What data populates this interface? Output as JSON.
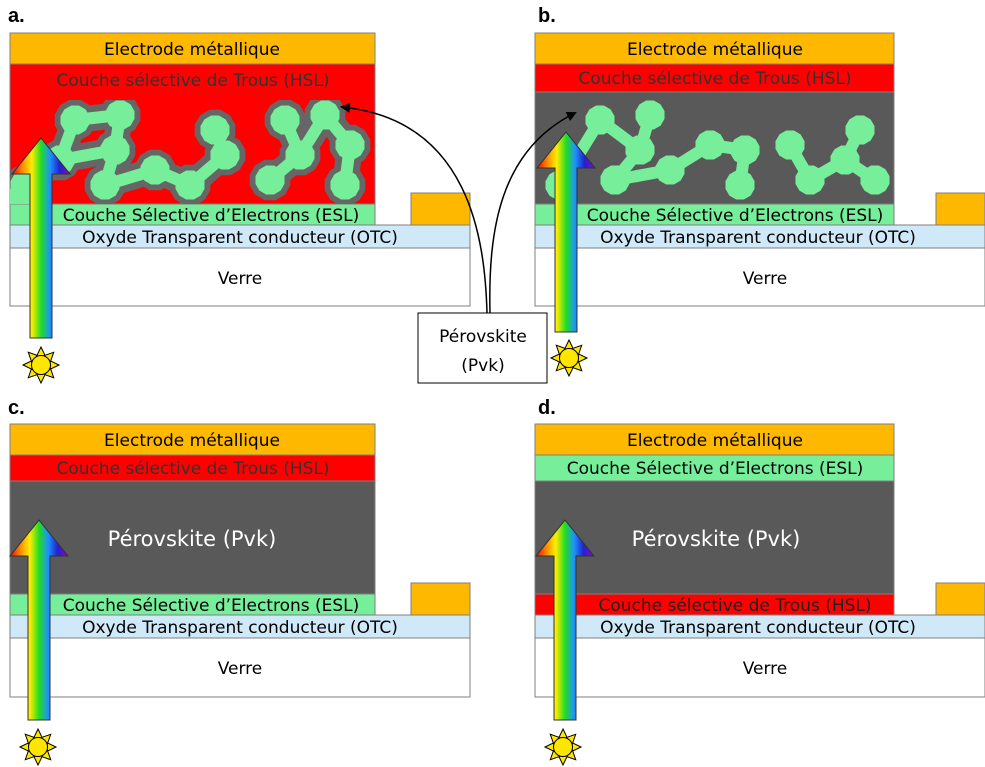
{
  "colors": {
    "electrode": "#FFB800",
    "hsl": "#FF0000",
    "esl": "#76EE9A",
    "otc": "#CFE9F8",
    "verre": "#FFFFFF",
    "pvk": "#595959",
    "particle": "#76EE9A",
    "particle_shell": "#666666",
    "sun": "#FFE600"
  },
  "panels": {
    "a": {
      "letter": "a.",
      "electrode": "Electrode métallique",
      "hsl": "Couche sélective de Trous (HSL)",
      "esl": "Couche Sélective d’Electrons (ESL)",
      "otc": "Oxyde Transparent conducteur (OTC)",
      "verre": "Verre"
    },
    "b": {
      "letter": "b.",
      "electrode": "Electrode métallique",
      "hsl": "Couche sélective de Trous (HSL)",
      "esl": "Couche Sélective d’Electrons (ESL)",
      "otc": "Oxyde Transparent conducteur (OTC)",
      "verre": "Verre"
    },
    "c": {
      "letter": "c.",
      "electrode": "Electrode métallique",
      "hsl": "Couche sélective de Trous (HSL)",
      "pvk": "Pérovskite (Pvk)",
      "esl": "Couche Sélective d’Electrons (ESL)",
      "otc": "Oxyde Transparent conducteur (OTC)",
      "verre": "Verre"
    },
    "d": {
      "letter": "d.",
      "electrode": "Electrode métallique",
      "esl": "Couche Sélective d’Electrons (ESL)",
      "pvk": "Pérovskite (Pvk)",
      "hsl": "Couche sélective de Trous (HSL)",
      "otc": "Oxyde Transparent conducteur (OTC)",
      "verre": "Verre"
    }
  },
  "callout": {
    "line1": "Pérovskite",
    "line2": "(Pvk)"
  }
}
